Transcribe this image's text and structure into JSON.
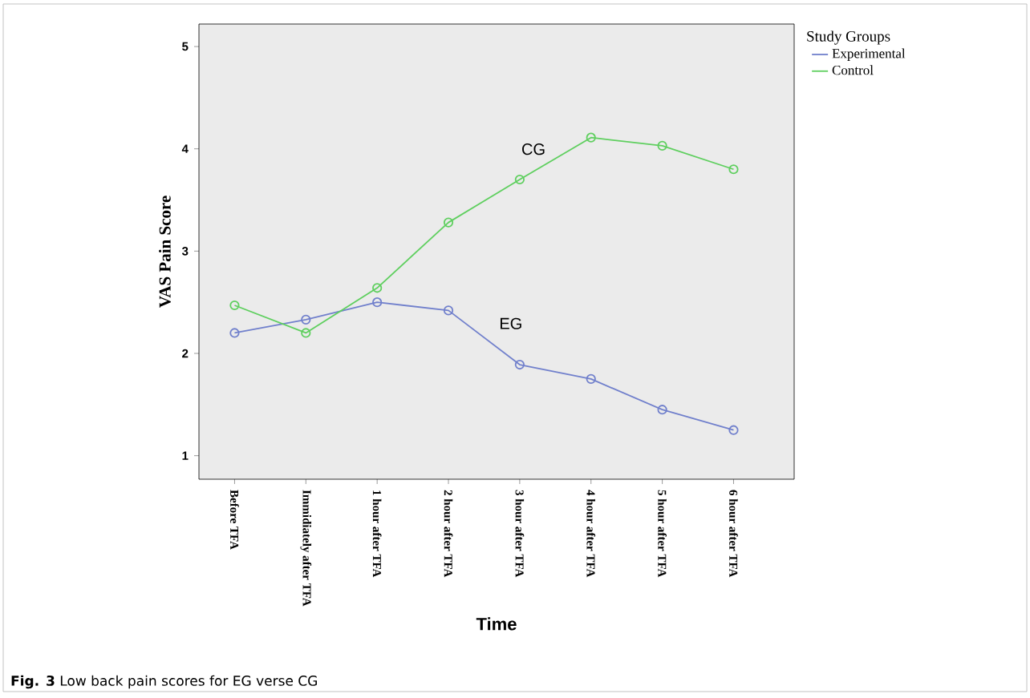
{
  "chart_data": {
    "type": "line",
    "xlabel": "Time",
    "ylabel": "VAS Pain Score",
    "legend_title": "Study Groups",
    "legend": "right",
    "marker": "circle",
    "line_style": "solid",
    "grid": false,
    "categories": [
      "Before TFA",
      "Immidiately after TFA",
      "1 hour after TFA",
      "2 hour after TFA",
      "3 hour after TFA",
      "4 hour after TFA",
      "5 hour after TFA",
      "6 hour after TFA"
    ],
    "series": [
      {
        "name": "Experimental",
        "color": "#7180cc",
        "values": [
          2.2,
          2.33,
          2.5,
          2.42,
          1.89,
          1.75,
          1.45,
          1.25
        ]
      },
      {
        "name": "Control",
        "color": "#5fcf5f",
        "values": [
          2.47,
          2.2,
          2.64,
          3.28,
          3.7,
          4.11,
          4.03,
          3.8
        ]
      }
    ],
    "ylim": [
      0.77,
      5.22
    ],
    "yticks": [
      1,
      2,
      3,
      4,
      5
    ],
    "annotations": [
      "CG",
      "EG",
      "**Fig. 3** Low back pain scores for EG verse CG"
    ]
  }
}
